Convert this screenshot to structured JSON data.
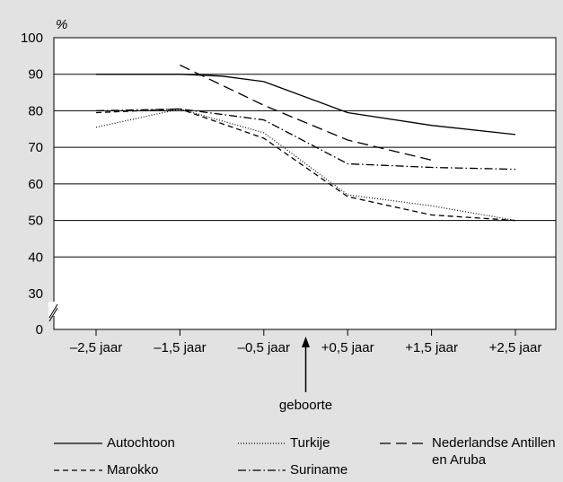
{
  "chart_data": {
    "type": "line",
    "ylabel": "%",
    "ylim": [
      0,
      100
    ],
    "y_axis_break": [
      0,
      30
    ],
    "yticks": [
      "0",
      "30",
      "40",
      "50",
      "60",
      "70",
      "80",
      "90",
      "100"
    ],
    "categories": [
      "–2,5 jaar",
      "–1,5 jaar",
      "–0,5 jaar",
      "+0,5 jaar",
      "+1,5 jaar",
      "+2,5 jaar"
    ],
    "x_positions": [
      -2.5,
      -1.5,
      -0.5,
      0.5,
      1.5,
      2.5
    ],
    "grid": "horizontal",
    "annotation": {
      "label": "geboorte",
      "x": 0
    },
    "legend_position": "bottom",
    "series": [
      {
        "name": "Autochtoon",
        "style": "solid",
        "x": [
          -2.5,
          -1.5,
          -1.0,
          -0.5,
          0.5,
          1.5,
          2.5
        ],
        "values": [
          90,
          90,
          89.5,
          88,
          79.5,
          76,
          73.5
        ]
      },
      {
        "name": "Turkije",
        "style": "dotted",
        "x": [
          -2.5,
          -1.5,
          -0.5,
          0.5,
          1.5,
          2.5
        ],
        "values": [
          75.5,
          80.5,
          74,
          57,
          54,
          50
        ]
      },
      {
        "name": "Nederlandse Antillen en Aruba",
        "style": "long-dash",
        "x": [
          -1.5,
          -0.5,
          0.5,
          1.5
        ],
        "values": [
          92.5,
          81.5,
          72,
          66.5
        ]
      },
      {
        "name": "Marokko",
        "style": "dashed",
        "x": [
          -2.5,
          -1.5,
          -0.5,
          0.5,
          1.5,
          2.5
        ],
        "values": [
          79.5,
          80.5,
          72.5,
          56.5,
          51.5,
          50
        ]
      },
      {
        "name": "Suriname",
        "style": "dash-dot",
        "x": [
          -2.5,
          -1.5,
          -0.5,
          0.5,
          1.5,
          2.5
        ],
        "values": [
          80,
          80.5,
          77.5,
          65.5,
          64.5,
          64
        ]
      }
    ]
  }
}
